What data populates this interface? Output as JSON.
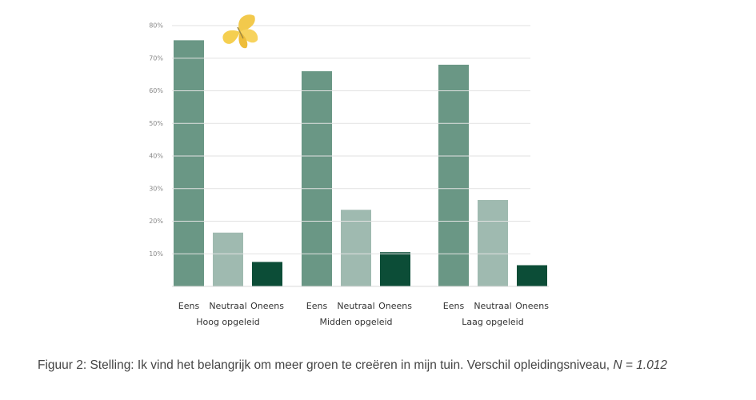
{
  "chart_data": {
    "type": "bar",
    "caption": "Figuur 2: Stelling: Ik vind het belangrijk om meer groen te creëren in mijn tuin. Verschil opleidingsniveau, ",
    "caption_note": "N = 1.012",
    "categories": [
      "Hoog opgeleid",
      "Midden opgeleid",
      "Laag opgeleid"
    ],
    "series": [
      {
        "name": "Eens",
        "color": "#6a9785",
        "values": [
          75.5,
          66,
          68
        ]
      },
      {
        "name": "Neutraal",
        "color": "#9fbab0",
        "values": [
          16.5,
          23.5,
          26.5
        ]
      },
      {
        "name": "Oneens",
        "color": "#0c4d37",
        "values": [
          7.5,
          10.5,
          6.5
        ]
      }
    ],
    "ylim": [
      0,
      80
    ],
    "yticks": [
      {
        "value": 10,
        "label": "10%"
      },
      {
        "value": 20,
        "label": "20%"
      },
      {
        "value": 30,
        "label": "30%"
      },
      {
        "value": 40,
        "label": "40%"
      },
      {
        "value": 50,
        "label": "50%"
      },
      {
        "value": 60,
        "label": "60%"
      },
      {
        "value": 70,
        "label": "70%"
      },
      {
        "value": 80,
        "label": "80%"
      }
    ],
    "grid": true
  }
}
